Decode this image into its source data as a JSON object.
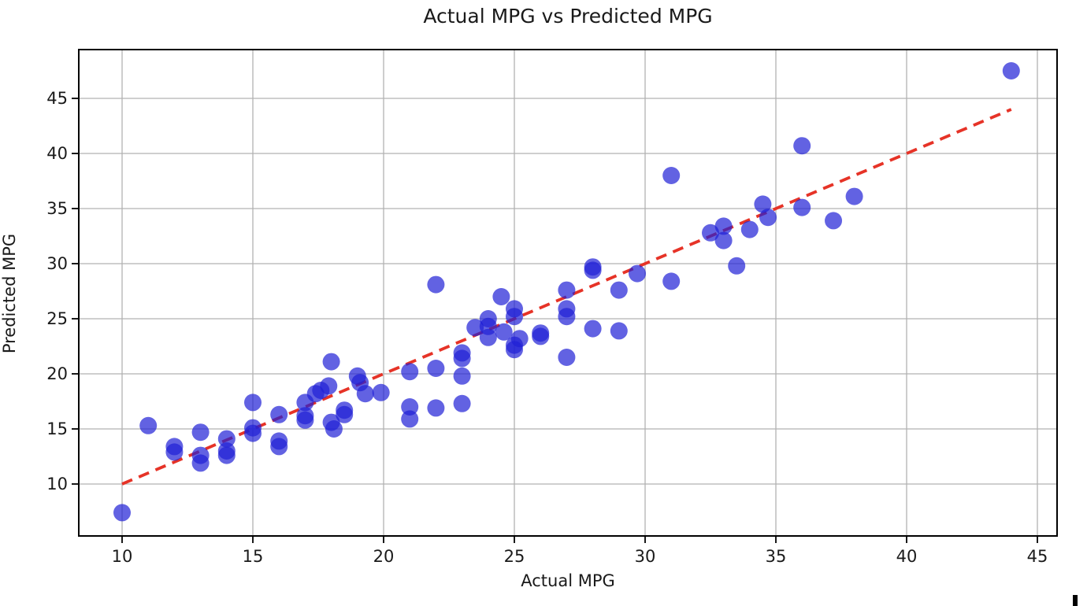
{
  "chart_data": {
    "type": "scatter",
    "title": "Actual MPG vs Predicted MPG",
    "xlabel": "Actual MPG",
    "ylabel": "Predicted MPG",
    "x_ticks": [
      10,
      15,
      20,
      25,
      30,
      35,
      40,
      45
    ],
    "y_ticks": [
      10,
      15,
      20,
      25,
      30,
      35,
      40,
      45
    ],
    "xlim": [
      8.3,
      45.8
    ],
    "ylim": [
      5.3,
      49.4
    ],
    "grid": true,
    "legend": "none",
    "point_color": "#1f1fd6",
    "point_opacity": 0.7,
    "reference_line": {
      "x1": 10,
      "y1": 10,
      "x2": 44,
      "y2": 44,
      "style": "dashed",
      "color": "#e63327"
    },
    "points": [
      [
        10,
        7.4
      ],
      [
        11,
        15.3
      ],
      [
        12,
        13.4
      ],
      [
        12,
        12.9
      ],
      [
        13,
        14.7
      ],
      [
        13,
        12.6
      ],
      [
        13,
        11.9
      ],
      [
        14,
        14.1
      ],
      [
        14,
        13.0
      ],
      [
        14,
        12.6
      ],
      [
        15,
        17.4
      ],
      [
        15,
        15.1
      ],
      [
        15,
        14.6
      ],
      [
        16,
        16.3
      ],
      [
        16,
        13.9
      ],
      [
        16,
        13.4
      ],
      [
        17,
        17.4
      ],
      [
        17,
        16.2
      ],
      [
        17,
        15.8
      ],
      [
        17.4,
        18.2
      ],
      [
        17.6,
        18.5
      ],
      [
        17.9,
        18.9
      ],
      [
        18,
        21.1
      ],
      [
        18,
        15.6
      ],
      [
        18.1,
        15.0
      ],
      [
        18.5,
        16.7
      ],
      [
        18.5,
        16.3
      ],
      [
        19,
        19.8
      ],
      [
        19.1,
        19.2
      ],
      [
        19.3,
        18.2
      ],
      [
        19.9,
        18.3
      ],
      [
        21,
        20.2
      ],
      [
        21,
        17.0
      ],
      [
        21,
        15.9
      ],
      [
        22,
        28.1
      ],
      [
        22,
        20.5
      ],
      [
        22,
        16.9
      ],
      [
        23,
        21.9
      ],
      [
        23,
        21.4
      ],
      [
        23,
        19.8
      ],
      [
        23,
        17.3
      ],
      [
        23.5,
        24.2
      ],
      [
        24,
        25.0
      ],
      [
        24,
        24.3
      ],
      [
        24,
        23.3
      ],
      [
        24.5,
        27.0
      ],
      [
        24.6,
        23.8
      ],
      [
        25,
        25.9
      ],
      [
        25,
        25.2
      ],
      [
        25.2,
        23.2
      ],
      [
        25,
        22.6
      ],
      [
        25,
        22.2
      ],
      [
        26,
        23.7
      ],
      [
        26,
        23.4
      ],
      [
        27,
        27.6
      ],
      [
        27,
        25.9
      ],
      [
        27,
        25.2
      ],
      [
        27,
        21.5
      ],
      [
        28,
        29.7
      ],
      [
        28,
        29.4
      ],
      [
        28,
        24.1
      ],
      [
        29,
        27.6
      ],
      [
        29,
        23.9
      ],
      [
        29.7,
        29.1
      ],
      [
        31,
        38.0
      ],
      [
        31,
        28.4
      ],
      [
        32.5,
        32.8
      ],
      [
        33,
        33.4
      ],
      [
        33,
        32.1
      ],
      [
        33.5,
        29.8
      ],
      [
        34,
        33.1
      ],
      [
        34.5,
        35.4
      ],
      [
        34.7,
        34.2
      ],
      [
        36,
        40.7
      ],
      [
        36,
        35.1
      ],
      [
        37.2,
        33.9
      ],
      [
        38,
        36.1
      ],
      [
        44,
        47.5
      ]
    ]
  }
}
